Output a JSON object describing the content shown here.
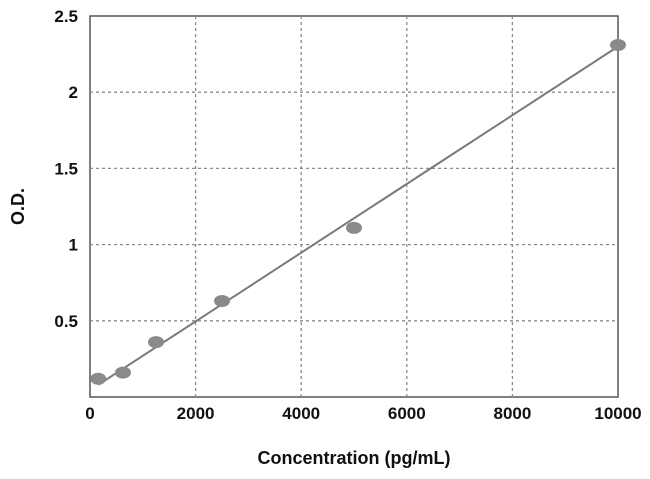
{
  "chart_data": {
    "type": "scatter",
    "title": "",
    "xlabel": "Concentration (pg/mL)",
    "ylabel": "O.D.",
    "xlim": [
      0,
      10000
    ],
    "ylim": [
      0,
      2.5
    ],
    "x_ticks": [
      0,
      2000,
      4000,
      6000,
      8000,
      10000
    ],
    "y_ticks": [
      0.5,
      1,
      1.5,
      2,
      2.5
    ],
    "x_tick_labels": [
      "0",
      "2000",
      "4000",
      "6000",
      "8000",
      "10000"
    ],
    "y_tick_labels": [
      "0.5",
      "1",
      "1.5",
      "2",
      "2.5"
    ],
    "grid": true,
    "legend": "none",
    "series": [
      {
        "x": [
          156,
          625,
          1250,
          2500,
          5000,
          10000
        ],
        "y": [
          0.12,
          0.16,
          0.36,
          0.63,
          1.11,
          2.31
        ]
      }
    ],
    "fit_line": {
      "x": [
        156,
        10000
      ],
      "y": [
        0.08,
        2.3
      ]
    },
    "colors": {
      "marker": "#8a8a8a",
      "line": "#7a7a7a",
      "grid": "#8c8c8c",
      "frame": "#555555",
      "text": "#111111"
    }
  }
}
